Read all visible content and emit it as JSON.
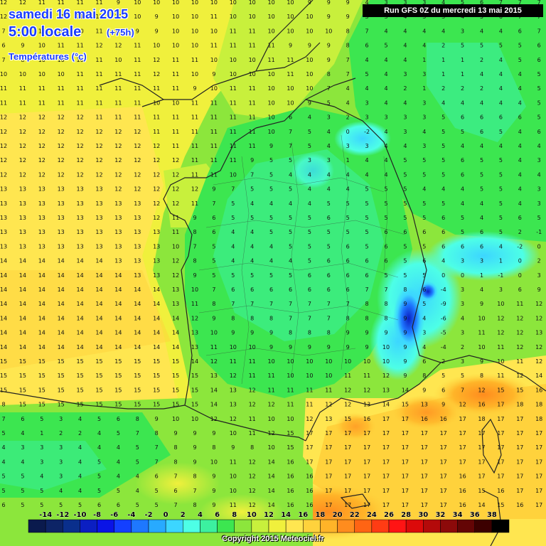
{
  "header": {
    "date_line": "samedi 16 mai 2015",
    "time_line": "5:00 locale",
    "lead_time": "(+75h)",
    "variable": "Températures (°c)"
  },
  "run_info": "Run GFS 0Z du mercredi 13 mai 2015",
  "copyright": "Copyright 2015 Meteociel.fr",
  "legend": {
    "labels": [
      "-14",
      "-12",
      "-10",
      "-8",
      "-6",
      "-4",
      "-2",
      "0",
      "2",
      "4",
      "6",
      "8",
      "10",
      "12",
      "14",
      "16",
      "18",
      "20",
      "22",
      "24",
      "26",
      "28",
      "30",
      "32",
      "34",
      "36",
      "38"
    ],
    "colors": [
      "#0a1a4d",
      "#0d2466",
      "#0a2f8c",
      "#0b1fc2",
      "#0a14e6",
      "#1440ff",
      "#1e78ff",
      "#28aaff",
      "#3cd6ff",
      "#4dffe6",
      "#3cf0a0",
      "#3ce650",
      "#8ce63c",
      "#c8f03c",
      "#f0f03c",
      "#ffe650",
      "#ffd23c",
      "#ffb428",
      "#ff8c1e",
      "#ff6414",
      "#ff3c14",
      "#ff1414",
      "#dc0a0a",
      "#b40a0a",
      "#8c0a0a",
      "#640505",
      "#3c0000",
      "#000000"
    ]
  },
  "grid_values": [
    "12 12 11 11 11 11 9 10 10 10 10 10 10 10 10 10 9 9 9 4 3 3 3 4 5 6 7 7 7",
    "12 12 11 11 11 11 10 10 9 10 10 11 10 10 10 10 10 9 9 3 3 4 3 3 4 5 6 7 7",
    "7 9 10 10 10 11 10 9 9 10 10 10 11 11 10 10 10 10 8 7 4 4 4 4 3 4 4 6 7",
    "6 9 10 11 11 12 12 11 10 10 10 11 11 11 11 9 9 9 8 6 5 4 4 2 5 5 5 5 6",
    "7 8 10 10 10 11 10 11 12 11 11 10 10 10 11 11 10 9 7 4 4 4 1 1 1 2 4 5 6",
    "10 10 10 10 11 11 11 11 12 11 10 9 10 10 10 11 10 8 7 5 4 3 3 1 1 4 4 4 5",
    "11 11 11 11 11 11 11 11 11 11 9 10 11 11 10 10 10 7 4 4 4 2 1 2 2 2 4 4 5",
    "11 11 11 11 11 11 11 11 10 10 11 11 11 11 10 10 9 5 4 3 4 4 3 4 4 4 4 4 5",
    "12 12 12 12 12 11 11 11 11 11 11 11 11 11 10 6 4 3 2 3 3 3 3 5 6 6 6 6 5",
    "12 12 12 12 12 12 12 12 11 11 11 11 11 11 10 7 5 4 0 -2 4 3 4 5 5 6 5 4 6",
    "12 12 12 12 12 12 12 12 12 11 11 11 11 11 9 7 5 4 3 3 4 4 3 5 4 4 4 4 4",
    "12 12 12 12 12 12 12 12 12 12 11 11 11 9 5 5 3 3 1 4 4 5 5 5 6 5 5 4 3",
    "12 12 12 12 12 12 12 12 12 12 11 11 10 7 5 4 4 4 4 4 4 5 5 5 6 5 5 4 4",
    "13 13 13 13 13 13 12 12 12 12 12 9 7 5 5 5 4 4 4 5 5 5 4 4 4 5 5 4 3",
    "13 13 13 13 13 13 13 13 12 12 11 7 5 4 4 4 4 5 5 5 5 5 5 5 4 4 5 4 3",
    "13 13 13 13 13 13 13 13 12 11 9 6 5 5 5 5 5 6 5 5 5 5 5 6 5 4 5 6 5",
    "13 13 13 13 13 13 13 13 13 11 8 6 4 4 5 5 5 5 5 5 6 6 6 6 5 6 5 2 -1",
    "13 13 13 13 13 13 13 13 13 10 7 5 4 4 4 5 5 5 6 5 6 5 5 6 6 6 4 -2 0",
    "14 14 14 14 14 14 13 13 13 12 8 5 4 4 4 4 5 6 6 6 6 5 6 4 3 3 1 0 2",
    "14 14 14 14 14 14 14 13 13 12 9 5 5 5 5 5 6 6 6 6 5 5 5 0 0 1 -1 0 3",
    "14 14 14 14 14 14 14 14 14 13 10 7 6 6 6 6 6 6 6 7 7 8 6 -4 3 4 3 6 9",
    "14 14 14 14 14 14 14 14 14 13 11 8 7 7 7 7 7 7 7 8 8 9 5 -9 3 9 10 11 12",
    "14 14 14 14 14 14 14 14 14 14 12 9 8 8 8 7 7 7 8 8 8 9 4 -6 4 10 12 12 12",
    "14 14 14 14 14 14 14 14 14 14 13 10 9 9 9 8 8 8 9 9 9 9 3 -5 3 11 12 12 13",
    "14 14 14 14 14 14 14 14 14 14 13 11 10 10 9 9 9 9 9 9 10 9 4 -4 2 10 11 12 12",
    "15 15 15 15 15 15 15 15 15 15 14 12 11 11 10 10 10 10 10 10 10 9 6 2 3 9 10 11 12",
    "15 15 15 15 15 15 15 15 15 15 15 13 12 11 11 10 10 10 11 11 12 9 8 5 5 8 11 12 14",
    "15 15 15 15 15 15 15 15 15 15 15 14 13 12 11 11 11 11 12 12 13 14 9 6 7 12 15 15 16",
    "8 15 15 15 15 15 15 15 15 15 15 14 13 12 12 11 11 12 12 13 14 15 13 9 12 16 17 18 18",
    "7 6 5 3 4 5 6 8 9 10 10 12 12 11 10 10 12 13 15 16 17 17 16 16 17 18 17 17 18",
    "5 4 1 2 2 4 5 7 8 9 9 9 10 11 12 15 17 17 17 17 17 17 17 17 17 17 17 17 17",
    "4 3 3 3 4 4 4 5 7 8 9 8 9 8 10 15 17 17 17 17 17 17 17 17 17 17 17 17 17",
    "4 4 3 3 4 5 4 5 7 8 9 10 11 12 14 16 17 17 17 17 17 17 17 17 17 17 17 17 17",
    "5 5 4 3 4 5 4 4 6 7 8 9 10 12 14 16 16 17 17 17 17 17 17 17 16 17 17 17 17",
    "5 5 5 4 4 5 5 4 5 6 7 9 10 12 14 16 16 17 17 17 17 17 17 17 16 15 16 17 17",
    "6 5 5 5 5 6 6 5 5 7 8 9 11 12 14 16 16 17 17 17 17 17 17 17 16 14 15 16 17",
    "12 12 11 10 9 9 10 9 8 9 9 8 9 10 12 14 15 16 17 17 17 17 17 16 16 16 17 17 17"
  ]
}
